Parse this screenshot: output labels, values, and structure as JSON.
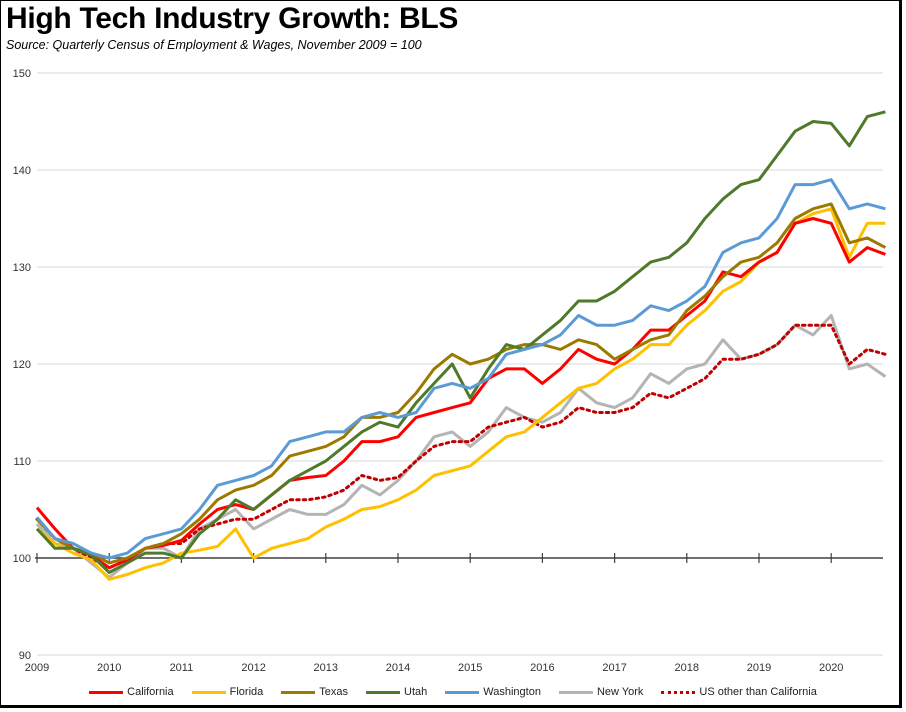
{
  "chart_data": {
    "type": "line",
    "title": "High Tech Industry Growth:  BLS",
    "subtitle": "Source:  Quarterly Census of Employment & Wages, November 2009 = 100",
    "xlabel": "",
    "ylabel": "",
    "ylim": [
      90,
      150
    ],
    "xlim": [
      2009,
      2020.75
    ],
    "yticks": [
      "90",
      "100",
      "110",
      "120",
      "130",
      "140",
      "150"
    ],
    "xticks": [
      "2009",
      "2010",
      "2011",
      "2012",
      "2013",
      "2014",
      "2015",
      "2016",
      "2017",
      "2018",
      "2019",
      "2020"
    ],
    "grid": true,
    "legend_position": "bottom",
    "series": [
      {
        "name": "California",
        "color": "#ff0000",
        "dash": false,
        "x": [
          2009,
          2009.25,
          2009.5,
          2009.75,
          2010,
          2010.25,
          2010.5,
          2010.75,
          2011,
          2011.25,
          2011.5,
          2011.75,
          2012,
          2012.25,
          2012.5,
          2012.75,
          2013,
          2013.25,
          2013.5,
          2013.75,
          2014,
          2014.25,
          2014.5,
          2014.75,
          2015,
          2015.25,
          2015.5,
          2015.75,
          2016,
          2016.25,
          2016.5,
          2016.75,
          2017,
          2017.25,
          2017.5,
          2017.75,
          2018,
          2018.25,
          2018.5,
          2018.75,
          2019,
          2019.25,
          2019.5,
          2019.75,
          2020,
          2020.25,
          2020.5,
          2020.75
        ],
        "y": [
          105.2,
          103.0,
          101.0,
          100.3,
          99.0,
          99.8,
          101.0,
          101.3,
          101.8,
          103.5,
          105.0,
          105.5,
          105.0,
          106.5,
          108.0,
          108.3,
          108.5,
          110.0,
          112.0,
          112.0,
          112.5,
          114.5,
          115.0,
          115.5,
          116.0,
          118.5,
          119.5,
          119.5,
          118.0,
          119.5,
          121.5,
          120.5,
          120.0,
          121.5,
          123.5,
          123.5,
          125.0,
          126.5,
          129.5,
          129.0,
          130.5,
          131.5,
          134.5,
          135.0,
          134.5,
          130.5,
          132.0,
          131.3
        ]
      },
      {
        "name": "Florida",
        "color": "#ffc000",
        "dash": false,
        "x": [
          2009,
          2009.25,
          2009.5,
          2009.75,
          2010,
          2010.25,
          2010.5,
          2010.75,
          2011,
          2011.25,
          2011.5,
          2011.75,
          2012,
          2012.25,
          2012.5,
          2012.75,
          2013,
          2013.25,
          2013.5,
          2013.75,
          2014,
          2014.25,
          2014.5,
          2014.75,
          2015,
          2015.25,
          2015.5,
          2015.75,
          2016,
          2016.25,
          2016.5,
          2016.75,
          2017,
          2017.25,
          2017.5,
          2017.75,
          2018,
          2018.25,
          2018.5,
          2018.75,
          2019,
          2019.25,
          2019.5,
          2019.75,
          2020,
          2020.25,
          2020.5,
          2020.75
        ],
        "y": [
          103.0,
          101.5,
          100.5,
          99.8,
          97.8,
          98.3,
          99.0,
          99.5,
          100.5,
          100.8,
          101.2,
          103.0,
          100.0,
          101.0,
          101.5,
          102.0,
          103.2,
          104.0,
          105.0,
          105.3,
          106.0,
          107.0,
          108.5,
          109.0,
          109.5,
          111.0,
          112.5,
          113.0,
          114.5,
          116.0,
          117.5,
          118.0,
          119.5,
          120.5,
          122.0,
          122.0,
          124.0,
          125.5,
          127.5,
          128.5,
          130.5,
          131.5,
          134.5,
          135.5,
          136.0,
          131.0,
          134.5,
          134.5
        ]
      },
      {
        "name": "Texas",
        "color": "#9c7a00",
        "dash": false,
        "x": [
          2009,
          2009.25,
          2009.5,
          2009.75,
          2010,
          2010.25,
          2010.5,
          2010.75,
          2011,
          2011.25,
          2011.5,
          2011.75,
          2012,
          2012.25,
          2012.5,
          2012.75,
          2013,
          2013.25,
          2013.5,
          2013.75,
          2014,
          2014.25,
          2014.5,
          2014.75,
          2015,
          2015.25,
          2015.5,
          2015.75,
          2016,
          2016.25,
          2016.5,
          2016.75,
          2017,
          2017.25,
          2017.5,
          2017.75,
          2018,
          2018.25,
          2018.5,
          2018.75,
          2019,
          2019.25,
          2019.5,
          2019.75,
          2020,
          2020.25,
          2020.5,
          2020.75
        ],
        "y": [
          104.0,
          102.0,
          101.0,
          100.5,
          99.5,
          100.0,
          101.0,
          101.5,
          102.5,
          104.0,
          106.0,
          107.0,
          107.5,
          108.5,
          110.5,
          111.0,
          111.5,
          112.5,
          114.5,
          114.5,
          115.0,
          117.0,
          119.5,
          121.0,
          120.0,
          120.5,
          121.5,
          122.0,
          122.0,
          121.5,
          122.5,
          122.0,
          120.5,
          121.5,
          122.5,
          123.0,
          125.5,
          127.0,
          129.0,
          130.5,
          131.0,
          132.5,
          135.0,
          136.0,
          136.5,
          132.5,
          133.0,
          132.0
        ]
      },
      {
        "name": "Utah",
        "color": "#4e7a2a",
        "dash": false,
        "x": [
          2009,
          2009.25,
          2009.5,
          2009.75,
          2010,
          2010.25,
          2010.5,
          2010.75,
          2011,
          2011.25,
          2011.5,
          2011.75,
          2012,
          2012.25,
          2012.5,
          2012.75,
          2013,
          2013.25,
          2013.5,
          2013.75,
          2014,
          2014.25,
          2014.5,
          2014.75,
          2015,
          2015.25,
          2015.5,
          2015.75,
          2016,
          2016.25,
          2016.5,
          2016.75,
          2017,
          2017.25,
          2017.5,
          2017.75,
          2018,
          2018.25,
          2018.5,
          2018.75,
          2019,
          2019.25,
          2019.5,
          2019.75,
          2020,
          2020.25,
          2020.5,
          2020.75
        ],
        "y": [
          103.0,
          101.0,
          101.0,
          100.3,
          98.5,
          99.5,
          100.5,
          100.5,
          100.0,
          102.5,
          104.0,
          106.0,
          105.0,
          106.5,
          108.0,
          109.0,
          110.0,
          111.5,
          113.0,
          114.0,
          113.5,
          116.0,
          118.0,
          120.0,
          116.5,
          119.5,
          122.0,
          121.5,
          123.0,
          124.5,
          126.5,
          126.5,
          127.5,
          129.0,
          130.5,
          131.0,
          132.5,
          135.0,
          137.0,
          138.5,
          139.0,
          141.5,
          144.0,
          145.0,
          144.8,
          142.5,
          145.5,
          146.0
        ]
      },
      {
        "name": "Washington",
        "color": "#5b9bd5",
        "dash": false,
        "x": [
          2009,
          2009.25,
          2009.5,
          2009.75,
          2010,
          2010.25,
          2010.5,
          2010.75,
          2011,
          2011.25,
          2011.5,
          2011.75,
          2012,
          2012.25,
          2012.5,
          2012.75,
          2013,
          2013.25,
          2013.5,
          2013.75,
          2014,
          2014.25,
          2014.5,
          2014.75,
          2015,
          2015.25,
          2015.5,
          2015.75,
          2016,
          2016.25,
          2016.5,
          2016.75,
          2017,
          2017.25,
          2017.5,
          2017.75,
          2018,
          2018.25,
          2018.5,
          2018.75,
          2019,
          2019.25,
          2019.5,
          2019.75,
          2020,
          2020.25,
          2020.5,
          2020.75
        ],
        "y": [
          104.2,
          102.0,
          101.5,
          100.5,
          100.0,
          100.5,
          102.0,
          102.5,
          103.0,
          105.0,
          107.5,
          108.0,
          108.5,
          109.5,
          112.0,
          112.5,
          113.0,
          113.0,
          114.5,
          115.0,
          114.5,
          115.0,
          117.5,
          118.0,
          117.5,
          118.5,
          121.0,
          121.5,
          122.0,
          123.0,
          125.0,
          124.0,
          124.0,
          124.5,
          126.0,
          125.5,
          126.5,
          128.0,
          131.5,
          132.5,
          133.0,
          135.0,
          138.5,
          138.5,
          139.0,
          136.0,
          136.5,
          136.0
        ]
      },
      {
        "name": "New York",
        "color": "#b4b4b4",
        "dash": false,
        "x": [
          2009,
          2009.25,
          2009.5,
          2009.75,
          2010,
          2010.25,
          2010.5,
          2010.75,
          2011,
          2011.25,
          2011.5,
          2011.75,
          2012,
          2012.25,
          2012.5,
          2012.75,
          2013,
          2013.25,
          2013.5,
          2013.75,
          2014,
          2014.25,
          2014.5,
          2014.75,
          2015,
          2015.25,
          2015.5,
          2015.75,
          2016,
          2016.25,
          2016.5,
          2016.75,
          2017,
          2017.25,
          2017.5,
          2017.75,
          2018,
          2018.25,
          2018.5,
          2018.75,
          2019,
          2019.25,
          2019.5,
          2019.75,
          2020,
          2020.25,
          2020.5,
          2020.75
        ],
        "y": [
          103.5,
          101.5,
          101.0,
          99.5,
          98.0,
          99.5,
          101.0,
          101.0,
          100.0,
          103.0,
          104.0,
          105.0,
          103.0,
          104.0,
          105.0,
          104.5,
          104.5,
          105.5,
          107.5,
          106.5,
          108.0,
          110.0,
          112.5,
          113.0,
          111.5,
          113.0,
          115.5,
          114.5,
          114.0,
          115.0,
          117.5,
          116.0,
          115.5,
          116.5,
          119.0,
          118.0,
          119.5,
          120.0,
          122.5,
          120.5,
          121.0,
          122.0,
          124.0,
          123.0,
          125.0,
          119.5,
          120.0,
          118.7
        ]
      },
      {
        "name": "US other than California",
        "color": "#c00000",
        "dash": true,
        "x": [
          2009,
          2009.25,
          2009.5,
          2009.75,
          2010,
          2010.25,
          2010.5,
          2010.75,
          2011,
          2011.25,
          2011.5,
          2011.75,
          2012,
          2012.25,
          2012.5,
          2012.75,
          2013,
          2013.25,
          2013.5,
          2013.75,
          2014,
          2014.25,
          2014.5,
          2014.75,
          2015,
          2015.25,
          2015.5,
          2015.75,
          2016,
          2016.25,
          2016.5,
          2016.75,
          2017,
          2017.25,
          2017.5,
          2017.75,
          2018,
          2018.25,
          2018.5,
          2018.75,
          2019,
          2019.25,
          2019.5,
          2019.75,
          2020,
          2020.25,
          2020.5,
          2020.75
        ],
        "y": [
          104.0,
          102.0,
          101.0,
          100.0,
          99.0,
          99.8,
          101.0,
          101.5,
          101.5,
          103.0,
          103.5,
          104.0,
          104.0,
          105.0,
          106.0,
          106.0,
          106.3,
          107.0,
          108.5,
          108.0,
          108.3,
          110.0,
          111.5,
          112.0,
          112.0,
          113.5,
          114.0,
          114.5,
          113.5,
          114.0,
          115.5,
          115.0,
          115.0,
          115.5,
          117.0,
          116.5,
          117.5,
          118.5,
          120.5,
          120.5,
          121.0,
          122.0,
          124.0,
          124.0,
          124.0,
          120.0,
          121.5,
          121.0
        ]
      }
    ]
  }
}
